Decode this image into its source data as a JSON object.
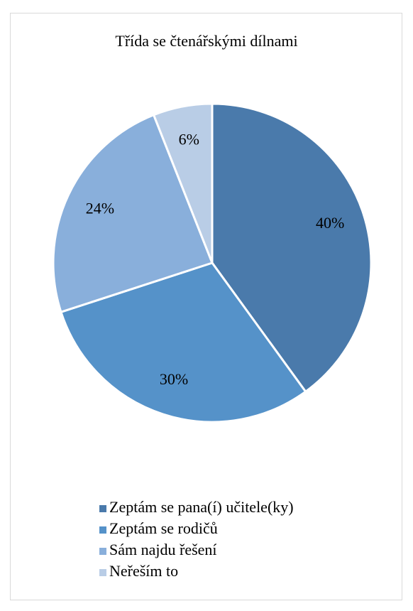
{
  "chart_data": {
    "type": "pie",
    "title": "Třída se čtenářskými dílnami",
    "categories": [
      "Zeptám se pana(í) učitele(ky)",
      "Zeptám se rodičů",
      "Sám najdu řešení",
      "Neřeším to"
    ],
    "values": [
      40,
      30,
      24,
      6
    ],
    "value_labels": [
      "40%",
      "30%",
      "24%",
      "6%"
    ],
    "colors": [
      "#4a7aab",
      "#5592c9",
      "#89afdb",
      "#b9cde6"
    ]
  }
}
